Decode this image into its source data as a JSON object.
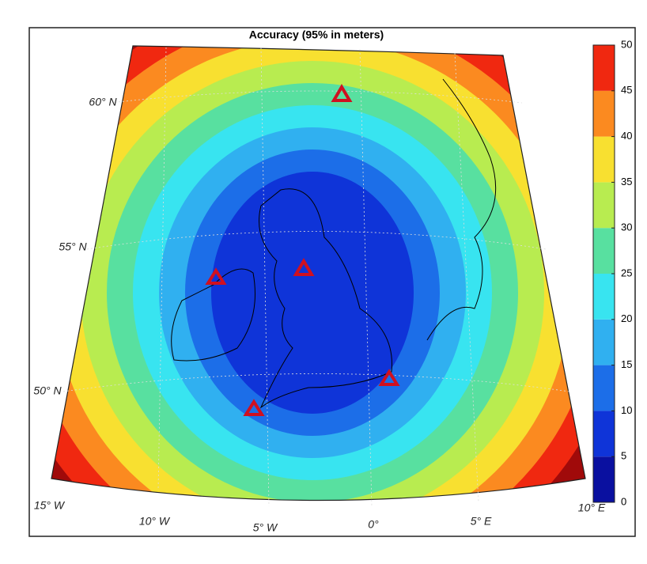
{
  "title": "Accuracy (95% in meters)",
  "latitude_labels": [
    "60° N",
    "55° N",
    "50° N"
  ],
  "longitude_labels": [
    "15° W",
    "10° W",
    "5° W",
    "0°",
    "5° E",
    "10° E"
  ],
  "colorbar": {
    "clim": [
      0,
      50
    ],
    "ticks": [
      0,
      5,
      10,
      15,
      20,
      25,
      30,
      35,
      40,
      45,
      50
    ],
    "colors": [
      "#0a10a0",
      "#0f34d8",
      "#1c6ee8",
      "#30b0f0",
      "#38e4f0",
      "#58e0a0",
      "#b8ec50",
      "#f8e030",
      "#fb8a20",
      "#f02810",
      "#a00a0a"
    ]
  }
}
